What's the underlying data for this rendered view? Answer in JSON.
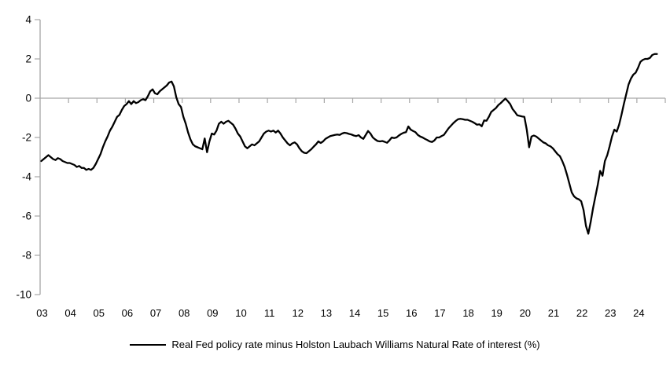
{
  "chart_data": {
    "type": "line",
    "title": "",
    "legend_label": "Real Fed policy rate minus Holston Laubach Williams Natural Rate of interest (%)",
    "legend_position": "bottom-center",
    "x_start": "2003-01",
    "x_end": "2024-09",
    "frequency": "monthly",
    "x_tick_labels": [
      "03",
      "04",
      "05",
      "06",
      "07",
      "08",
      "09",
      "10",
      "11",
      "12",
      "13",
      "14",
      "15",
      "16",
      "17",
      "18",
      "19",
      "20",
      "21",
      "22",
      "23",
      "24"
    ],
    "y_ticks": [
      4,
      2,
      0,
      -2,
      -4,
      -6,
      -8,
      -10
    ],
    "ylim": [
      -10,
      4
    ],
    "grid": "zero-line-only",
    "axis_color": "#a6a6a6",
    "line_color": "#000000",
    "series": [
      {
        "name": "Real Fed policy rate minus Holston Laubach Williams Natural Rate of interest (%)",
        "color": "#000000",
        "values": [
          -3.2,
          -3.1,
          -3.0,
          -2.9,
          -3.0,
          -3.1,
          -3.15,
          -3.05,
          -3.1,
          -3.2,
          -3.25,
          -3.3,
          -3.3,
          -3.35,
          -3.4,
          -3.5,
          -3.45,
          -3.55,
          -3.55,
          -3.65,
          -3.6,
          -3.65,
          -3.55,
          -3.35,
          -3.1,
          -2.85,
          -2.5,
          -2.2,
          -1.95,
          -1.65,
          -1.45,
          -1.2,
          -0.95,
          -0.85,
          -0.6,
          -0.4,
          -0.3,
          -0.15,
          -0.3,
          -0.15,
          -0.25,
          -0.2,
          -0.1,
          -0.05,
          -0.1,
          0.1,
          0.35,
          0.45,
          0.25,
          0.2,
          0.35,
          0.45,
          0.55,
          0.65,
          0.8,
          0.85,
          0.6,
          0.05,
          -0.3,
          -0.45,
          -0.95,
          -1.3,
          -1.75,
          -2.1,
          -2.35,
          -2.45,
          -2.5,
          -2.55,
          -2.6,
          -2.05,
          -2.75,
          -2.2,
          -1.8,
          -1.85,
          -1.65,
          -1.3,
          -1.2,
          -1.3,
          -1.2,
          -1.15,
          -1.25,
          -1.35,
          -1.55,
          -1.8,
          -1.95,
          -2.2,
          -2.45,
          -2.55,
          -2.45,
          -2.35,
          -2.4,
          -2.3,
          -2.2,
          -2.0,
          -1.8,
          -1.7,
          -1.65,
          -1.7,
          -1.65,
          -1.75,
          -1.65,
          -1.8,
          -2.0,
          -2.15,
          -2.3,
          -2.4,
          -2.3,
          -2.25,
          -2.35,
          -2.55,
          -2.7,
          -2.78,
          -2.8,
          -2.7,
          -2.6,
          -2.47,
          -2.35,
          -2.2,
          -2.28,
          -2.2,
          -2.07,
          -2.0,
          -1.93,
          -1.9,
          -1.87,
          -1.85,
          -1.87,
          -1.8,
          -1.76,
          -1.78,
          -1.82,
          -1.85,
          -1.9,
          -1.93,
          -1.88,
          -2.0,
          -2.07,
          -1.87,
          -1.67,
          -1.8,
          -2.0,
          -2.1,
          -2.18,
          -2.2,
          -2.18,
          -2.22,
          -2.27,
          -2.15,
          -2.0,
          -2.03,
          -2.0,
          -1.9,
          -1.82,
          -1.76,
          -1.73,
          -1.44,
          -1.6,
          -1.67,
          -1.73,
          -1.87,
          -1.95,
          -2.0,
          -2.07,
          -2.13,
          -2.2,
          -2.23,
          -2.15,
          -2.0,
          -2.0,
          -1.93,
          -1.87,
          -1.7,
          -1.53,
          -1.4,
          -1.27,
          -1.16,
          -1.07,
          -1.05,
          -1.07,
          -1.1,
          -1.1,
          -1.15,
          -1.2,
          -1.27,
          -1.35,
          -1.33,
          -1.43,
          -1.13,
          -1.15,
          -0.95,
          -0.7,
          -0.6,
          -0.5,
          -0.35,
          -0.25,
          -0.13,
          -0.02,
          -0.15,
          -0.3,
          -0.55,
          -0.7,
          -0.87,
          -0.9,
          -0.93,
          -0.95,
          -1.6,
          -2.5,
          -1.95,
          -1.9,
          -1.95,
          -2.05,
          -2.15,
          -2.25,
          -2.3,
          -2.4,
          -2.45,
          -2.55,
          -2.7,
          -2.85,
          -2.95,
          -3.2,
          -3.5,
          -3.9,
          -4.35,
          -4.8,
          -5.0,
          -5.1,
          -5.15,
          -5.25,
          -5.7,
          -6.5,
          -6.9,
          -6.3,
          -5.6,
          -5.0,
          -4.4,
          -3.7,
          -3.95,
          -3.2,
          -2.9,
          -2.45,
          -1.95,
          -1.6,
          -1.7,
          -1.35,
          -0.85,
          -0.3,
          0.2,
          0.7,
          1.0,
          1.2,
          1.3,
          1.55,
          1.85,
          1.95,
          2.0,
          2.0,
          2.05,
          2.2,
          2.25,
          2.25
        ]
      }
    ]
  }
}
